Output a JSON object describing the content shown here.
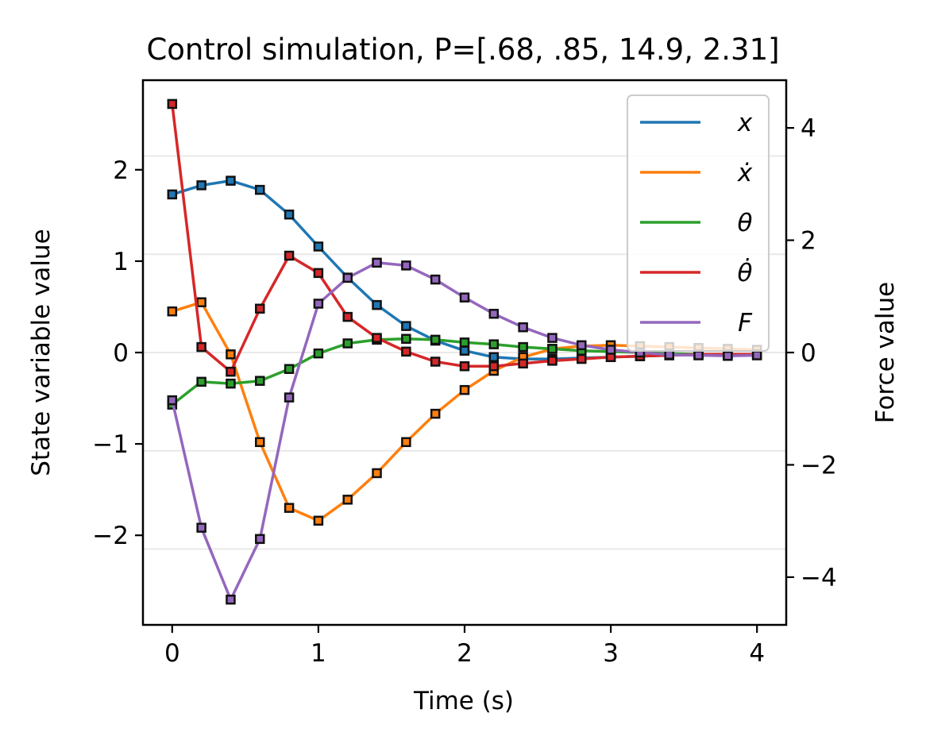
{
  "chart_data": {
    "type": "line",
    "title": "Control simulation, P=[.68, .85, 14.9, 2.31]",
    "xlabel": "Time (s)",
    "ylabel": "State variable value",
    "y2label": "Force value",
    "xlim": [
      -0.2,
      4.2
    ],
    "ylim": [
      -2.98,
      2.98
    ],
    "y2lim": [
      -4.85,
      4.85
    ],
    "xticks": [
      0,
      1,
      2,
      3,
      4
    ],
    "yticks": [
      -2,
      -1,
      0,
      1,
      2
    ],
    "y2ticks": [
      -4,
      -2,
      0,
      2,
      4
    ],
    "xtick_labels": [
      "0",
      "1",
      "2",
      "3",
      "4"
    ],
    "ytick_labels": [
      "−2",
      "−1",
      "0",
      "1",
      "2"
    ],
    "y2tick_labels": [
      "−4",
      "−2",
      "0",
      "2",
      "4"
    ],
    "grid": "horizontal, secondary axis",
    "legend_position": "top-right",
    "marker": "square",
    "x": [
      0,
      0.2,
      0.4,
      0.6,
      0.8,
      1.0,
      1.2,
      1.4,
      1.6,
      1.8,
      2.0,
      2.2,
      2.4,
      2.6,
      2.8,
      3.0,
      3.2,
      3.4,
      3.6,
      3.8,
      4.0
    ],
    "series": [
      {
        "name": "x",
        "axis": "left",
        "color": "#1f77b4",
        "values": [
          1.73,
          1.83,
          1.88,
          1.78,
          1.51,
          1.16,
          0.82,
          0.52,
          0.29,
          0.13,
          0.02,
          -0.05,
          -0.07,
          -0.07,
          -0.06,
          -0.05,
          -0.04,
          -0.03,
          -0.02,
          -0.02,
          -0.02
        ]
      },
      {
        "name": "ẋ",
        "axis": "left",
        "color": "#ff7f0e",
        "values": [
          0.45,
          0.55,
          -0.02,
          -0.98,
          -1.7,
          -1.84,
          -1.61,
          -1.32,
          -0.98,
          -0.67,
          -0.41,
          -0.2,
          -0.05,
          0.04,
          0.07,
          0.08,
          0.07,
          0.06,
          0.05,
          0.04,
          0.03
        ]
      },
      {
        "name": "θ",
        "axis": "left",
        "color": "#2ca02c",
        "values": [
          -0.57,
          -0.32,
          -0.34,
          -0.31,
          -0.18,
          -0.01,
          0.1,
          0.14,
          0.15,
          0.14,
          0.11,
          0.09,
          0.06,
          0.04,
          0.02,
          0.01,
          0.0,
          -0.01,
          -0.02,
          -0.02,
          -0.02
        ]
      },
      {
        "name": "θ̇",
        "axis": "left",
        "color": "#d62728",
        "values": [
          2.72,
          0.06,
          -0.21,
          0.48,
          1.06,
          0.87,
          0.39,
          0.16,
          0.01,
          -0.1,
          -0.15,
          -0.15,
          -0.12,
          -0.09,
          -0.07,
          -0.05,
          -0.04,
          -0.03,
          -0.02,
          -0.02,
          -0.02
        ]
      },
      {
        "name": "F",
        "axis": "right",
        "color": "#9467bd",
        "values": [
          -0.85,
          -3.12,
          -4.4,
          -3.32,
          -0.8,
          0.87,
          1.33,
          1.6,
          1.55,
          1.3,
          0.98,
          0.69,
          0.45,
          0.26,
          0.13,
          0.05,
          0.0,
          -0.04,
          -0.05,
          -0.06,
          -0.05
        ]
      }
    ]
  }
}
